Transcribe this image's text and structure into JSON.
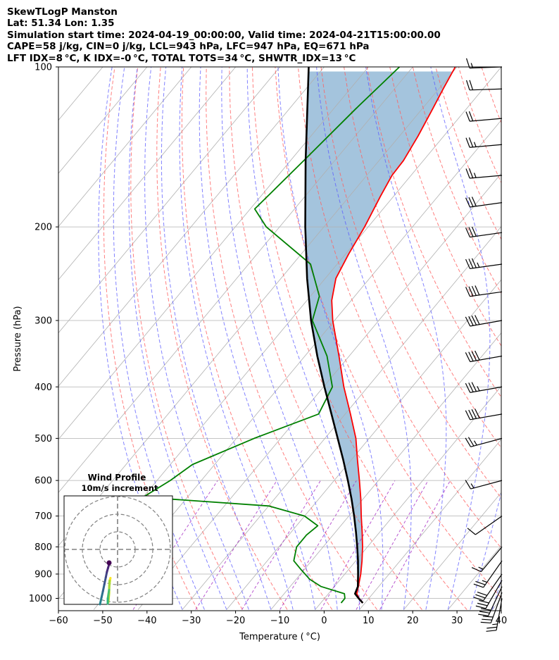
{
  "header": {
    "lines": [
      "SkewTLogP Manston",
      "Lat: 51.34   Lon: 1.35",
      "Simulation start time: 2024-04-19_00:00:00, Valid time: 2024-04-21T15:00:00.00",
      "CAPE=58 j/kg, CIN=0 j/kg, LCL=943 hPa, LFC=947 hPa, EQ=671 hPa",
      "LFT IDX=8 °C, K IDX=-0 °C, TOTAL TOTS=34 °C, SHWTR_IDX=13 °C"
    ]
  },
  "chart_data": {
    "type": "line",
    "subtype": "skew-t log-p",
    "xlabel": "Temperature ( °C)",
    "ylabel": "Pressure (hPa)",
    "xlim": [
      -60,
      40
    ],
    "ylim": [
      1050,
      100
    ],
    "y_scale": "log",
    "grid": true,
    "x_ticks": [
      "−60",
      "−50",
      "−40",
      "−30",
      "−20",
      "−10",
      "0",
      "10",
      "20",
      "30",
      "40"
    ],
    "y_ticks": [
      "100",
      "200",
      "300",
      "400",
      "500",
      "600",
      "700",
      "800",
      "900",
      "1000"
    ],
    "y_tick_values": [
      100,
      200,
      300,
      400,
      500,
      600,
      700,
      800,
      900,
      1000
    ],
    "colors": {
      "temperature": "#ff0000",
      "dewpoint": "#008000",
      "parcel": "#000000",
      "cape_fill": "#a4c4dd",
      "dry_adiabat": "#ff6060",
      "moist_adiabat": "#5a5aff",
      "mixing_ratio": "#a020c0",
      "isotherm": "#b0b0b0"
    },
    "series": [],
    "temperature_profile": [
      {
        "p": 1020,
        "t": 9.5
      },
      {
        "p": 1000,
        "t": 7.8
      },
      {
        "p": 980,
        "t": 6.4
      },
      {
        "p": 950,
        "t": 5.4
      },
      {
        "p": 900,
        "t": 3.6
      },
      {
        "p": 850,
        "t": 1.4
      },
      {
        "p": 800,
        "t": -1.1
      },
      {
        "p": 750,
        "t": -4.0
      },
      {
        "p": 700,
        "t": -7.2
      },
      {
        "p": 650,
        "t": -10.5
      },
      {
        "p": 600,
        "t": -14.3
      },
      {
        "p": 550,
        "t": -18.5
      },
      {
        "p": 500,
        "t": -23.0
      },
      {
        "p": 450,
        "t": -28.8
      },
      {
        "p": 400,
        "t": -35.4
      },
      {
        "p": 350,
        "t": -42.3
      },
      {
        "p": 300,
        "t": -50.4
      },
      {
        "p": 275,
        "t": -54.4
      },
      {
        "p": 250,
        "t": -57.6
      },
      {
        "p": 225,
        "t": -59.3
      },
      {
        "p": 200,
        "t": -60.8
      },
      {
        "p": 175,
        "t": -63.0
      },
      {
        "p": 160,
        "t": -64.3
      },
      {
        "p": 150,
        "t": -64.5
      },
      {
        "p": 135,
        "t": -65.8
      },
      {
        "p": 120,
        "t": -67.6
      },
      {
        "p": 110,
        "t": -69.0
      },
      {
        "p": 100,
        "t": -70.4
      }
    ],
    "dewpoint_profile": [
      {
        "p": 1020,
        "t": 4.6
      },
      {
        "p": 1000,
        "t": 4.6
      },
      {
        "p": 980,
        "t": 3.6
      },
      {
        "p": 950,
        "t": -3.0
      },
      {
        "p": 920,
        "t": -7.0
      },
      {
        "p": 880,
        "t": -11.0
      },
      {
        "p": 850,
        "t": -14.0
      },
      {
        "p": 800,
        "t": -16.0
      },
      {
        "p": 760,
        "t": -16.0
      },
      {
        "p": 730,
        "t": -15.2
      },
      {
        "p": 700,
        "t": -20.0
      },
      {
        "p": 670,
        "t": -30.0
      },
      {
        "p": 645,
        "t": -60.0
      },
      {
        "p": 600,
        "t": -57.0
      },
      {
        "p": 560,
        "t": -55.0
      },
      {
        "p": 500,
        "t": -46.0
      },
      {
        "p": 450,
        "t": -36.0
      },
      {
        "p": 400,
        "t": -38.0
      },
      {
        "p": 350,
        "t": -45.0
      },
      {
        "p": 300,
        "t": -55.0
      },
      {
        "p": 270,
        "t": -58.0
      },
      {
        "p": 235,
        "t": -66.0
      },
      {
        "p": 200,
        "t": -83.0
      },
      {
        "p": 185,
        "t": -89.0
      },
      {
        "p": 150,
        "t": -87.0
      },
      {
        "p": 120,
        "t": -85.0
      },
      {
        "p": 100,
        "t": -83.0
      }
    ],
    "parcel_profile": [
      {
        "p": 1020,
        "t": 9.5
      },
      {
        "p": 1000,
        "t": 7.7
      },
      {
        "p": 980,
        "t": 6.0
      },
      {
        "p": 950,
        "t": 5.3
      },
      {
        "p": 900,
        "t": 3.0
      },
      {
        "p": 850,
        "t": 0.5
      },
      {
        "p": 800,
        "t": -2.3
      },
      {
        "p": 750,
        "t": -5.4
      },
      {
        "p": 700,
        "t": -8.8
      },
      {
        "p": 650,
        "t": -12.6
      },
      {
        "p": 600,
        "t": -16.9
      },
      {
        "p": 550,
        "t": -21.7
      },
      {
        "p": 500,
        "t": -27.1
      },
      {
        "p": 450,
        "t": -33.1
      },
      {
        "p": 400,
        "t": -39.8
      },
      {
        "p": 350,
        "t": -47.2
      },
      {
        "p": 300,
        "t": -55.3
      },
      {
        "p": 250,
        "t": -64.1
      },
      {
        "p": 200,
        "t": -74.2
      },
      {
        "p": 150,
        "t": -86.6
      },
      {
        "p": 100,
        "t": -103.5
      }
    ],
    "wind_barbs": [
      {
        "p": 1000,
        "speed_kt": 25,
        "dir_deg": 190
      },
      {
        "p": 975,
        "speed_kt": 30,
        "dir_deg": 200
      },
      {
        "p": 950,
        "speed_kt": 30,
        "dir_deg": 205
      },
      {
        "p": 925,
        "speed_kt": 30,
        "dir_deg": 210
      },
      {
        "p": 900,
        "speed_kt": 30,
        "dir_deg": 215
      },
      {
        "p": 850,
        "speed_kt": 25,
        "dir_deg": 215
      },
      {
        "p": 800,
        "speed_kt": 15,
        "dir_deg": 220
      },
      {
        "p": 700,
        "speed_kt": 10,
        "dir_deg": 235
      },
      {
        "p": 600,
        "speed_kt": 15,
        "dir_deg": 255
      },
      {
        "p": 500,
        "speed_kt": 25,
        "dir_deg": 255
      },
      {
        "p": 450,
        "speed_kt": 40,
        "dir_deg": 260
      },
      {
        "p": 400,
        "speed_kt": 35,
        "dir_deg": 260
      },
      {
        "p": 350,
        "speed_kt": 40,
        "dir_deg": 260
      },
      {
        "p": 300,
        "speed_kt": 40,
        "dir_deg": 260
      },
      {
        "p": 265,
        "speed_kt": 40,
        "dir_deg": 262
      },
      {
        "p": 235,
        "speed_kt": 35,
        "dir_deg": 262
      },
      {
        "p": 205,
        "speed_kt": 30,
        "dir_deg": 262
      },
      {
        "p": 180,
        "speed_kt": 30,
        "dir_deg": 262
      },
      {
        "p": 160,
        "speed_kt": 25,
        "dir_deg": 265
      },
      {
        "p": 140,
        "speed_kt": 25,
        "dir_deg": 265
      },
      {
        "p": 125,
        "speed_kt": 20,
        "dir_deg": 265
      },
      {
        "p": 110,
        "speed_kt": 20,
        "dir_deg": 268
      },
      {
        "p": 100,
        "speed_kt": 15,
        "dir_deg": 268
      }
    ],
    "inset": {
      "title": "Wind Profile",
      "subtitle": "10m/s increment",
      "ring_increment_ms": 10,
      "hodograph": [
        {
          "u": -2.6,
          "v": -9.5,
          "c": "#b5de2b"
        },
        {
          "u": -2.3,
          "v": -7.5,
          "c": "#c8e020"
        },
        {
          "u": -1.8,
          "v": -5.8,
          "c": "#e0e31b"
        },
        {
          "u": -1.2,
          "v": -4.2,
          "c": "#fde725"
        },
        {
          "u": -1.6,
          "v": -4.8,
          "c": "#9fda3a"
        },
        {
          "u": -2.4,
          "v": -6.8,
          "c": "#4ac16d"
        },
        {
          "u": -3.2,
          "v": -8.7,
          "c": "#2fb47c"
        },
        {
          "u": -3.6,
          "v": -9.8,
          "c": "#1f9e89"
        }
      ],
      "hodograph_upper": [
        {
          "u": -3.8,
          "v": -10.0,
          "c": "#26828e"
        },
        {
          "u": -3.4,
          "v": -8.8,
          "c": "#2c728e"
        },
        {
          "u": -3.0,
          "v": -7.6,
          "c": "#33638d"
        },
        {
          "u": -2.6,
          "v": -6.3,
          "c": "#3b528b"
        },
        {
          "u": -2.2,
          "v": -5.0,
          "c": "#414487"
        },
        {
          "u": -1.9,
          "v": -4.0,
          "c": "#472d7b"
        },
        {
          "u": -1.6,
          "v": -3.3,
          "c": "#482475"
        },
        {
          "u": -1.3,
          "v": -2.6,
          "c": "#440154"
        }
      ]
    }
  }
}
